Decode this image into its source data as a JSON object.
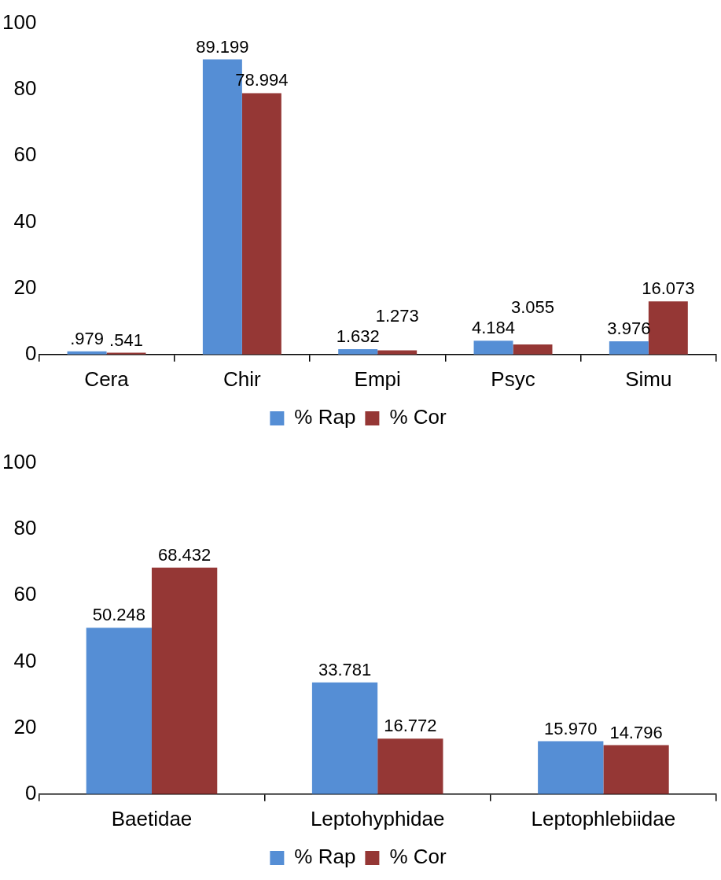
{
  "chart_data": [
    {
      "type": "bar",
      "categories": [
        "Cera",
        "Chir",
        "Empi",
        "Psyc",
        "Simu"
      ],
      "series": [
        {
          "name": "% Rap",
          "color": "#558ed5",
          "values": [
            0.979,
            89.199,
            1.632,
            4.184,
            3.976
          ],
          "value_labels": [
            ".979",
            "89.199",
            "1.632",
            "4.184",
            "3.976"
          ]
        },
        {
          "name": "% Cor",
          "color": "#953735",
          "values": [
            0.541,
            78.994,
            1.273,
            3.055,
            16.073
          ],
          "value_labels": [
            ".541",
            "78.994",
            "1.273",
            "3.055",
            "16.073"
          ]
        }
      ],
      "ylim": [
        0,
        100
      ],
      "yticks": [
        0,
        20,
        40,
        60,
        80,
        100
      ],
      "grid": false,
      "legend": "bottom"
    },
    {
      "type": "bar",
      "categories": [
        "Baetidae",
        "Leptohyphidae",
        "Leptophlebiidae"
      ],
      "series": [
        {
          "name": "% Rap",
          "color": "#558ed5",
          "values": [
            50.248,
            33.781,
            15.97
          ],
          "value_labels": [
            "50.248",
            "33.781",
            "15.970"
          ]
        },
        {
          "name": "% Cor",
          "color": "#953735",
          "values": [
            68.432,
            16.772,
            14.796
          ],
          "value_labels": [
            "68.432",
            "16.772",
            "14.796"
          ]
        }
      ],
      "ylim": [
        0,
        100
      ],
      "yticks": [
        0,
        20,
        40,
        60,
        80,
        100
      ],
      "grid": false,
      "legend": "bottom"
    }
  ]
}
